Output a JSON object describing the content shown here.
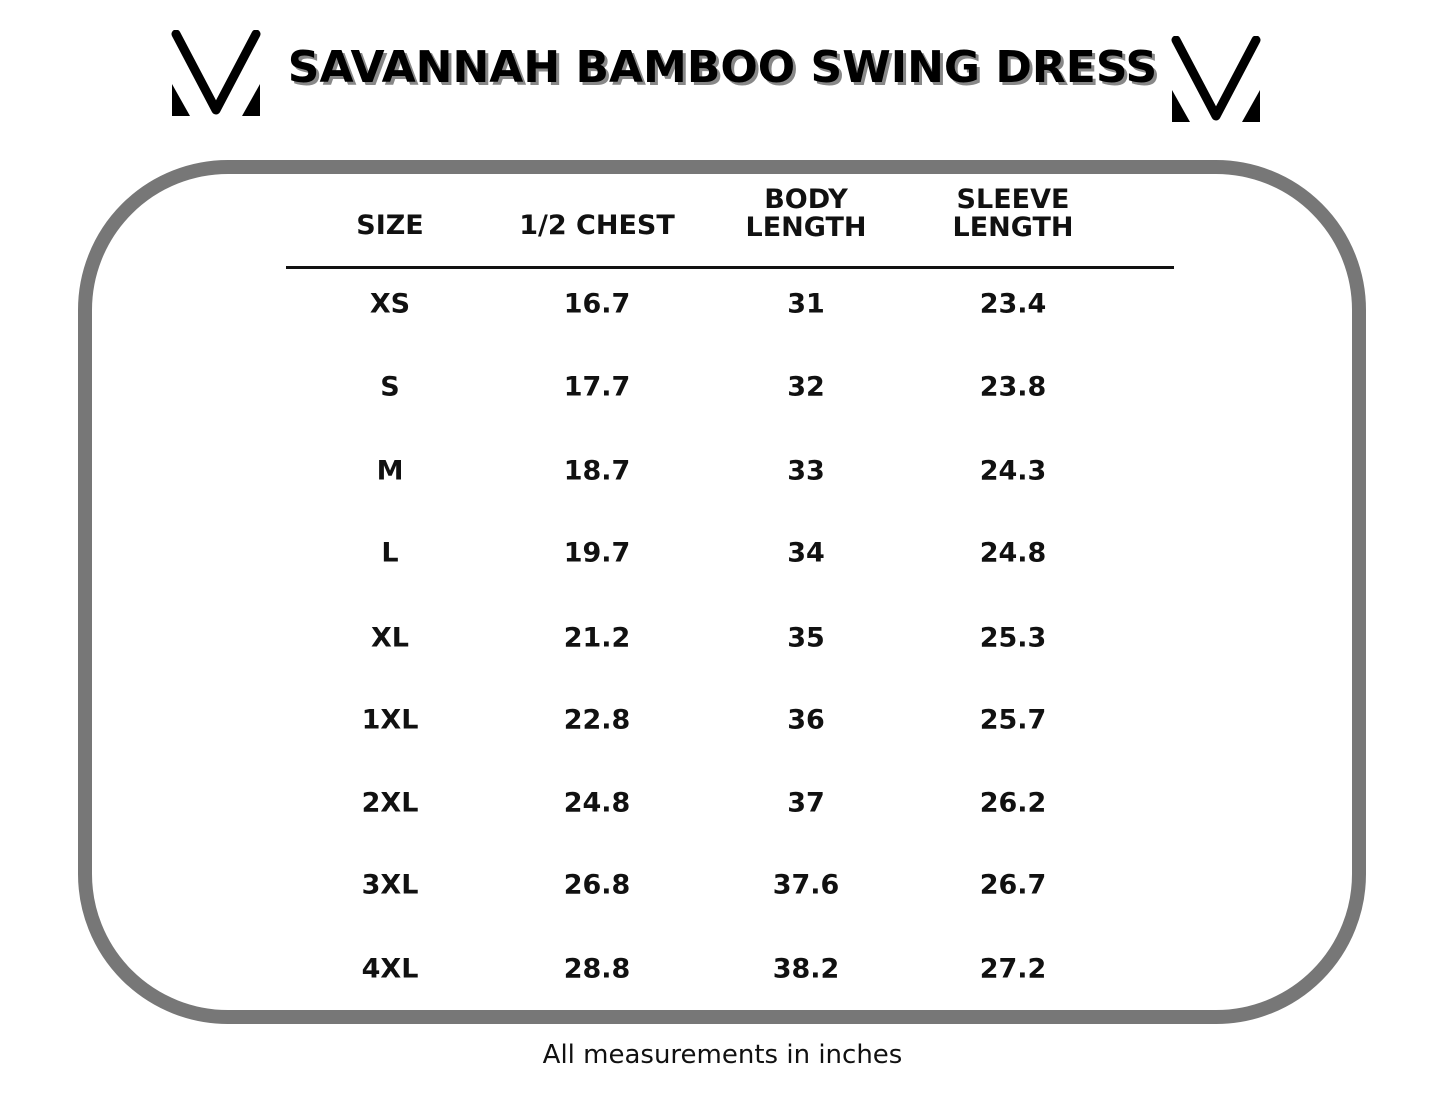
{
  "title": "SAVANNAH BAMBOO SWING DRESS",
  "logo_icon": "v-logo-icon",
  "headers": [
    "SIZE",
    "1/2 CHEST",
    "BODY\nLENGTH",
    "SLEEVE\nLENGTH"
  ],
  "header_lines": [
    [
      "SIZE"
    ],
    [
      "1/2 CHEST"
    ],
    [
      "BODY",
      "LENGTH"
    ],
    [
      "SLEEVE",
      "LENGTH"
    ]
  ],
  "rows": [
    [
      "XS",
      "16.7",
      "31",
      "23.4"
    ],
    [
      "S",
      "17.7",
      "32",
      "23.8"
    ],
    [
      "M",
      "18.7",
      "33",
      "24.3"
    ],
    [
      "L",
      "19.7",
      "34",
      "24.8"
    ],
    [
      "XL",
      "21.2",
      "35",
      "25.3"
    ],
    [
      "1XL",
      "22.8",
      "36",
      "25.7"
    ],
    [
      "2XL",
      "24.8",
      "37",
      "26.2"
    ],
    [
      "3XL",
      "26.8",
      "37.6",
      "26.7"
    ],
    [
      "4XL",
      "28.8",
      "38.2",
      "27.2"
    ]
  ],
  "footer": "All measurements in inches",
  "colors": {
    "frame": "#777777",
    "text": "#111111",
    "title_shadow": "#888888"
  }
}
